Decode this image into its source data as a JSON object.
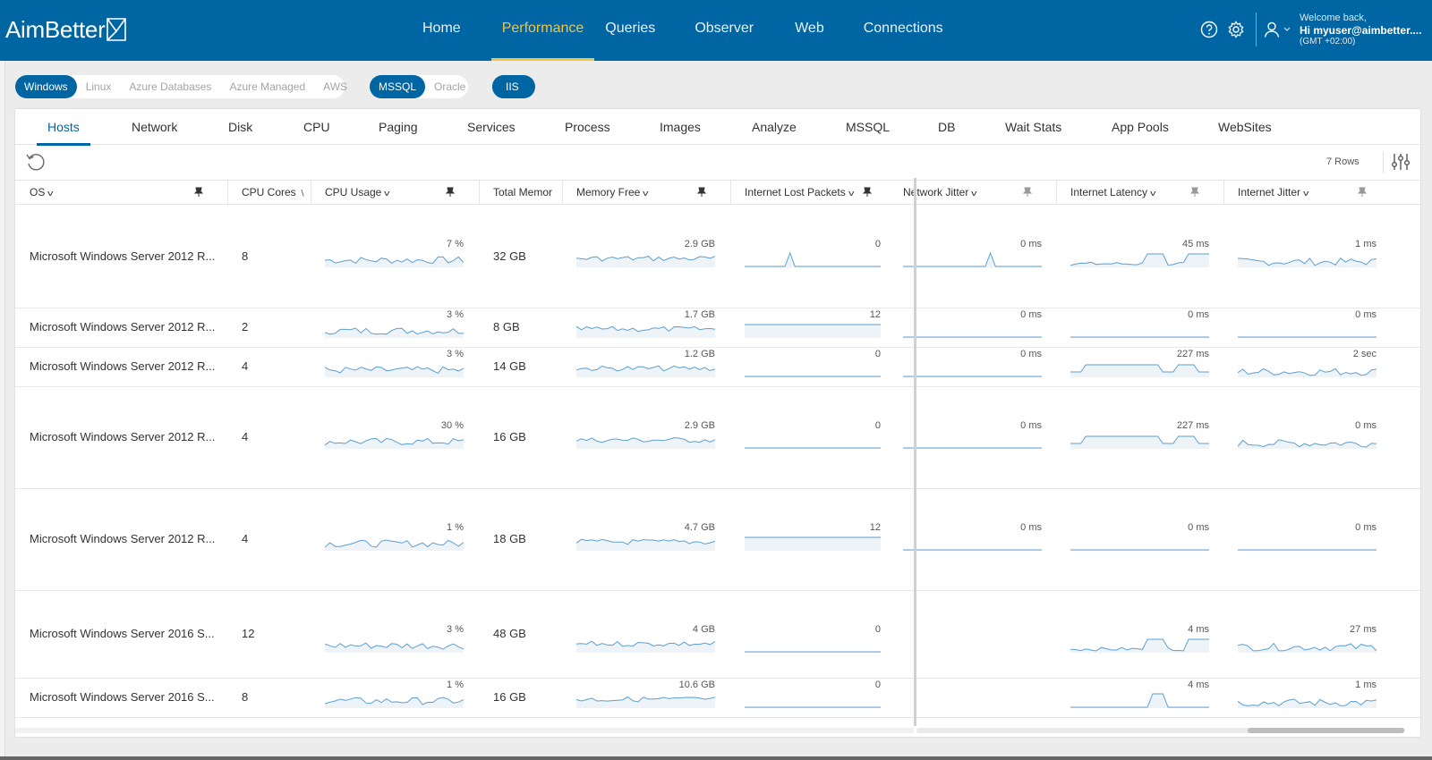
{
  "header": {
    "logo_text": "AimBetter",
    "nav": [
      {
        "label": "Home",
        "active": false
      },
      {
        "label": "Performance",
        "active": true
      },
      {
        "label": "Queries",
        "active": false
      },
      {
        "label": "Observer",
        "active": false
      },
      {
        "label": "Web",
        "active": false
      },
      {
        "label": "Connections",
        "active": false
      }
    ],
    "user": {
      "welcome": "Welcome back,",
      "name": "Hi myuser@aimbetter....",
      "timezone": "(GMT +02:00)"
    }
  },
  "platform_filters": [
    "Windows",
    "Linux",
    "Azure Databases",
    "Azure Managed",
    "AWS"
  ],
  "platform_active": "Windows",
  "db_filters": [
    "MSSQL",
    "Oracle"
  ],
  "db_active": "MSSQL",
  "web_filters": [
    "IIS"
  ],
  "tabs": [
    "Hosts",
    "Network",
    "Disk",
    "CPU",
    "Paging",
    "Services",
    "Process",
    "Images",
    "Analyze",
    "MSSQL",
    "DB",
    "Wait Stats",
    "App Pools",
    "WebSites"
  ],
  "active_tab": "Hosts",
  "toolbar": {
    "rows_label": "7 Rows"
  },
  "columns": [
    "OS",
    "CPU Cores",
    "CPU Usage",
    "Total Memor",
    "Memory Free",
    "Internet Lost Packets",
    "Network Jitter",
    "Internet Latency",
    "Internet Jitter"
  ],
  "rows": [
    {
      "os": "Microsoft Windows Server 2012 R...",
      "cores": "8",
      "cpu": "7 %",
      "mem": "32 GB",
      "free": "2.9 GB",
      "lost": "0",
      "njit": "0 ms",
      "lat": "45 ms",
      "ijit": "1 ms"
    },
    {
      "os": "Microsoft Windows Server 2012 R...",
      "cores": "2",
      "cpu": "3 %",
      "mem": "8 GB",
      "free": "1.7 GB",
      "lost": "12",
      "njit": "0 ms",
      "lat": "0 ms",
      "ijit": "0 ms"
    },
    {
      "os": "Microsoft Windows Server 2012 R...",
      "cores": "4",
      "cpu": "3 %",
      "mem": "14 GB",
      "free": "1.2 GB",
      "lost": "0",
      "njit": "0 ms",
      "lat": "227 ms",
      "ijit": "2 sec"
    },
    {
      "os": "Microsoft Windows Server 2012 R...",
      "cores": "4",
      "cpu": "30 %",
      "mem": "16 GB",
      "free": "2.9 GB",
      "lost": "0",
      "njit": "0 ms",
      "lat": "227 ms",
      "ijit": "0 ms"
    },
    {
      "os": "Microsoft Windows Server 2012 R...",
      "cores": "4",
      "cpu": "1 %",
      "mem": "18 GB",
      "free": "4.7 GB",
      "lost": "12",
      "njit": "0 ms",
      "lat": "0 ms",
      "ijit": "0 ms"
    },
    {
      "os": "Microsoft Windows Server 2016 S...",
      "cores": "12",
      "cpu": "3 %",
      "mem": "48 GB",
      "free": "4 GB",
      "lost": "0",
      "njit": "",
      "lat": "4 ms",
      "ijit": "27 ms"
    },
    {
      "os": "Microsoft Windows Server 2016 S...",
      "cores": "8",
      "cpu": "1 %",
      "mem": "16 GB",
      "free": "10.6 GB",
      "lost": "0",
      "njit": "",
      "lat": "4 ms",
      "ijit": "1 ms"
    }
  ],
  "colors": {
    "brand": "#0065a3",
    "accent": "#f5c342",
    "spark_line": "#5b9fd4",
    "spark_fill": "#eef3f8"
  }
}
